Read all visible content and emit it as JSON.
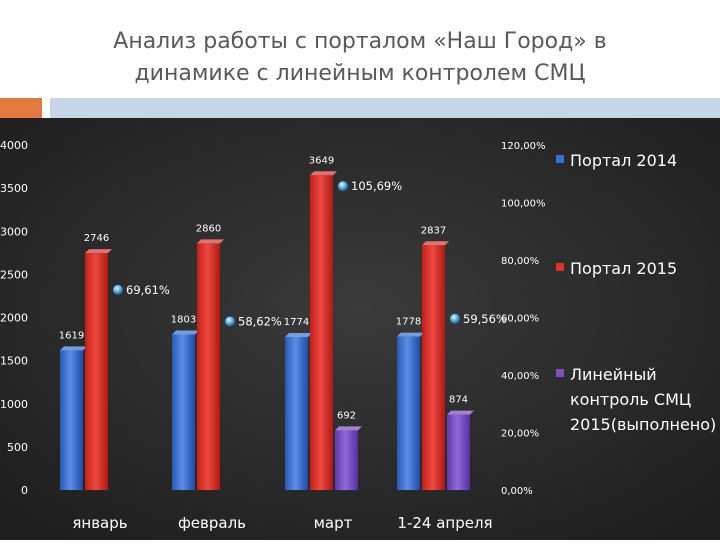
{
  "slide": {
    "title_line1": "Анализ работы с порталом «Наш Город» в",
    "title_line2": "динамике  с линейным контролем СМЦ"
  },
  "colors": {
    "background": "#2b2b2b",
    "portal_2014": "#3b6fd4",
    "portal_2015": "#e0312b",
    "line_control": "#7a4fc9",
    "accent_orange": "#e07a3e",
    "accent_blue": "#c8d5e8"
  },
  "chart_data": {
    "type": "bar",
    "title": "",
    "categories": [
      "январь",
      "февраль",
      "март",
      "1-24 апреля"
    ],
    "series": [
      {
        "name": "Портал 2014",
        "values": [
          1619,
          1803,
          1774,
          1778
        ]
      },
      {
        "name": "Портал 2015",
        "values": [
          2746,
          2860,
          3649,
          2837
        ]
      },
      {
        "name": "Линейный контроль СМЦ 2015(выполнено)",
        "values": [
          null,
          null,
          692,
          874
        ]
      }
    ],
    "percent_markers": {
      "values": [
        69.61,
        58.62,
        105.69,
        59.56
      ],
      "labels": [
        "69,61%",
        "58,62%",
        "105,69%",
        "59,56%"
      ]
    },
    "y_left": {
      "min": 0,
      "max": 4000,
      "ticks": [
        "0",
        "500",
        "1000",
        "1500",
        "2000",
        "2500",
        "3000",
        "3500",
        "4000"
      ]
    },
    "y_right": {
      "min": 0,
      "max": 120,
      "ticks": [
        "0,00%",
        "20,00%",
        "40,00%",
        "60,00%",
        "80,00%",
        "100,00%",
        "120,00%"
      ]
    },
    "legend": {
      "position": "right",
      "entries": [
        "Портал 2014",
        "Портал 2015",
        "Линейный контроль СМЦ 2015(выполнено)"
      ],
      "line3_parts": [
        "Линейный",
        "контроль СМЦ",
        "2015(выполнено)"
      ]
    },
    "grid": false
  }
}
